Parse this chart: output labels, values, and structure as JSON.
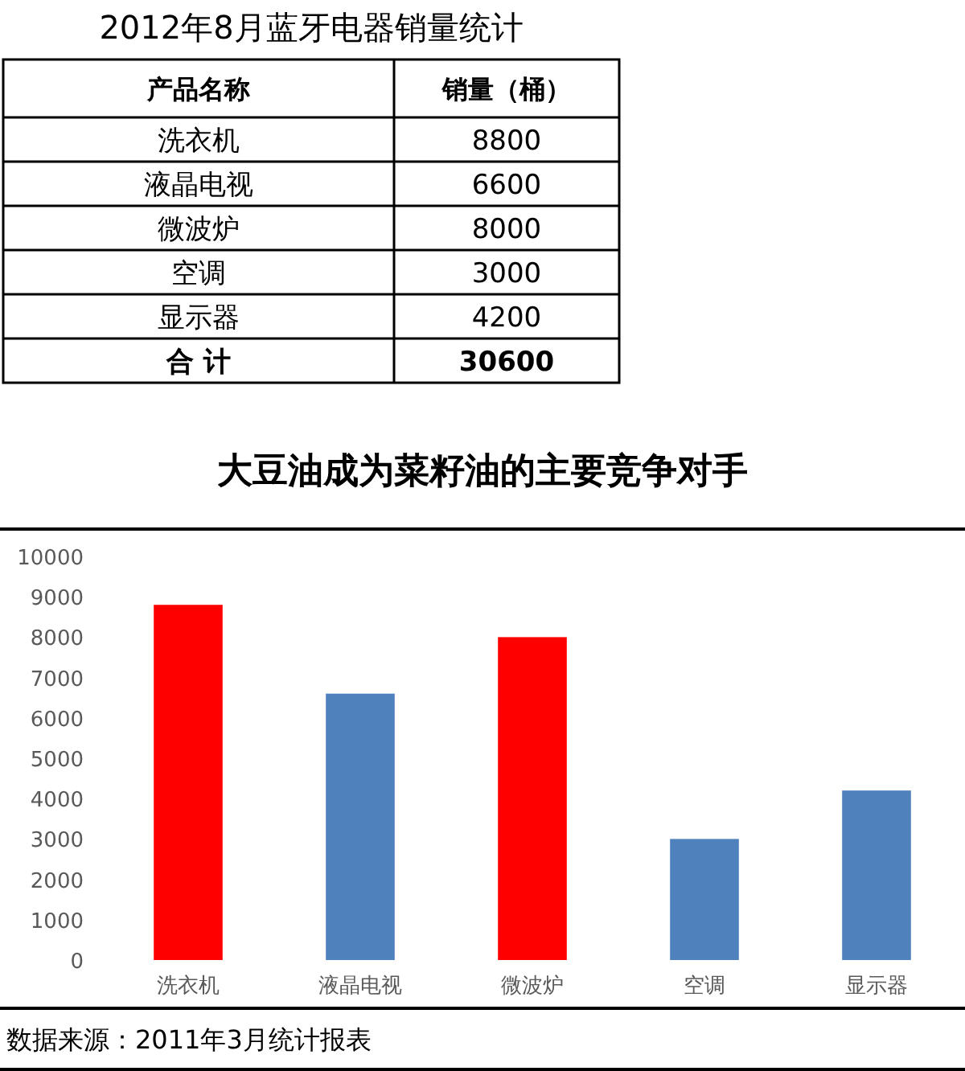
{
  "chart_data": [
    {
      "type": "other",
      "title": "2012年8月蓝牙电器销量统计",
      "categories": [
        "洗衣机",
        "液晶电视",
        "微波炉",
        "空调",
        "显示器"
      ],
      "values": [
        8800,
        6600,
        8000,
        3000,
        4200
      ],
      "data_labels": true,
      "annotations": [
        "产品名称",
        "销量（桶）",
        "合 计",
        "30600"
      ]
    },
    {
      "type": "bar",
      "title": "大豆油成为菜籽油的主要竞争对手",
      "categories": [
        "洗衣机",
        "液晶电视",
        "微波炉",
        "空调",
        "显示器"
      ],
      "values": [
        8800,
        6600,
        8000,
        3000,
        4200
      ],
      "colors": [
        "#ff0000",
        "#4f81bd",
        "#ff0000",
        "#4f81bd",
        "#4f81bd"
      ],
      "ylim": [
        0,
        10000
      ],
      "yticks": [
        0,
        1000,
        2000,
        3000,
        4000,
        5000,
        6000,
        7000,
        8000,
        9000,
        10000
      ],
      "annotations": [
        "数据来源：2011年3月统计报表"
      ]
    }
  ]
}
